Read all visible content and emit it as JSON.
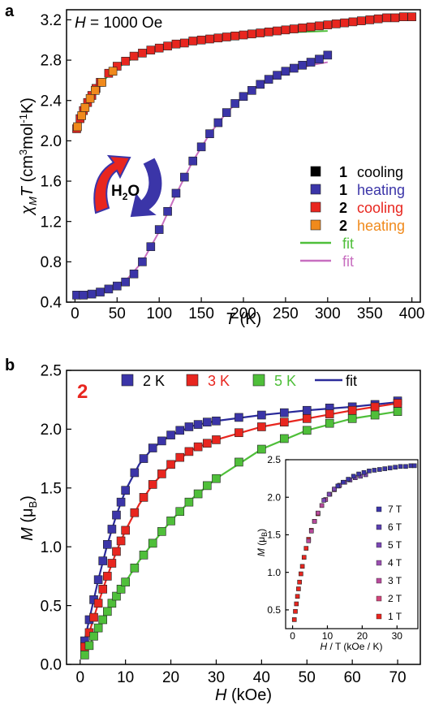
{
  "chart_data": [
    {
      "panel": "a",
      "type": "scatter",
      "annotation": "H = 1000 Oe",
      "xlabel": "T (K)",
      "ylabel": "χMT (cm3mol-1K)",
      "xlim": [
        -10,
        410
      ],
      "ylim": [
        0.4,
        3.3
      ],
      "xticks": [
        0,
        50,
        100,
        150,
        200,
        250,
        300,
        350,
        400
      ],
      "yticks": [
        0.4,
        0.8,
        1.2,
        1.6,
        2.0,
        2.4,
        2.8,
        3.2
      ],
      "ytick_labels": [
        "0.4",
        "0.8",
        "1.2",
        "1.6",
        "2.0",
        "2.4",
        "2.8",
        "3.2"
      ],
      "inset_label": "H2O",
      "legend": [
        {
          "id": "1",
          "label": "cooling",
          "marker": "square",
          "color": "#000000",
          "text_color": "#000000"
        },
        {
          "id": "1",
          "label": "heating",
          "marker": "square",
          "color": "#3b35a8",
          "text_color": "#3b35a8"
        },
        {
          "id": "2",
          "label": "cooling",
          "marker": "square",
          "color": "#e8261f",
          "text_color": "#e8261f"
        },
        {
          "id": "2",
          "label": "heating",
          "marker": "square",
          "color": "#f08a1c",
          "text_color": "#f08a1c"
        },
        {
          "id": "",
          "label": "fit",
          "marker": "line",
          "color": "#4fbf3a",
          "text_color": "#4fbf3a"
        },
        {
          "id": "",
          "label": "fit",
          "marker": "line",
          "color": "#c86fc0",
          "text_color": "#c86fc0"
        }
      ],
      "series": [
        {
          "name": "1 heating",
          "color": "#3b35a8",
          "marker": "square",
          "x": [
            2,
            10,
            20,
            30,
            40,
            50,
            60,
            70,
            80,
            90,
            100,
            110,
            120,
            130,
            140,
            150,
            160,
            170,
            180,
            190,
            200,
            210,
            220,
            230,
            240,
            250,
            260,
            270,
            280,
            290,
            300
          ],
          "y": [
            0.47,
            0.47,
            0.48,
            0.5,
            0.53,
            0.56,
            0.6,
            0.68,
            0.8,
            0.95,
            1.12,
            1.3,
            1.48,
            1.64,
            1.8,
            1.94,
            2.07,
            2.18,
            2.28,
            2.37,
            2.44,
            2.5,
            2.56,
            2.61,
            2.65,
            2.69,
            2.72,
            2.75,
            2.78,
            2.81,
            2.85
          ]
        },
        {
          "name": "2 cooling",
          "color": "#e8261f",
          "marker": "square",
          "x": [
            2,
            6,
            10,
            15,
            20,
            25,
            30,
            40,
            50,
            60,
            70,
            80,
            90,
            100,
            110,
            120,
            130,
            140,
            150,
            160,
            170,
            180,
            190,
            200,
            210,
            220,
            230,
            240,
            250,
            260,
            270,
            280,
            290,
            300,
            310,
            320,
            330,
            340,
            350,
            360,
            370,
            380,
            390,
            400
          ],
          "y": [
            2.12,
            2.22,
            2.3,
            2.38,
            2.45,
            2.52,
            2.58,
            2.67,
            2.74,
            2.79,
            2.84,
            2.87,
            2.9,
            2.92,
            2.94,
            2.96,
            2.97,
            2.99,
            3.0,
            3.01,
            3.02,
            3.03,
            3.04,
            3.05,
            3.06,
            3.07,
            3.08,
            3.09,
            3.1,
            3.11,
            3.12,
            3.13,
            3.14,
            3.15,
            3.16,
            3.17,
            3.18,
            3.19,
            3.2,
            3.21,
            3.22,
            3.22,
            3.23,
            3.23
          ]
        },
        {
          "name": "2 heating",
          "color": "#f08a1c",
          "marker": "square",
          "x": [
            3,
            8,
            12,
            18,
            24,
            32,
            45
          ],
          "y": [
            2.14,
            2.25,
            2.33,
            2.42,
            2.5,
            2.58,
            2.69
          ]
        }
      ],
      "fits": [
        {
          "name": "fit (1)",
          "color": "#c86fc0",
          "x": [
            0,
            20,
            40,
            60,
            80,
            100,
            120,
            140,
            160,
            180,
            200,
            220,
            240,
            260,
            280,
            300
          ],
          "y": [
            0.46,
            0.47,
            0.52,
            0.61,
            0.8,
            1.1,
            1.47,
            1.8,
            2.07,
            2.28,
            2.44,
            2.56,
            2.64,
            2.7,
            2.75,
            2.78
          ]
        },
        {
          "name": "fit (2)",
          "color": "#4fbf3a",
          "x": [
            0,
            10,
            20,
            30,
            40,
            60,
            80,
            100,
            120,
            150,
            180,
            210,
            240,
            270,
            300
          ],
          "y": [
            2.08,
            2.27,
            2.44,
            2.56,
            2.65,
            2.78,
            2.86,
            2.92,
            2.96,
            3.0,
            3.03,
            3.05,
            3.07,
            3.08,
            3.09
          ]
        }
      ]
    },
    {
      "panel": "b",
      "type": "scatter",
      "compound_label": "2",
      "compound_color": "#e8261f",
      "xlabel": "H (kOe)",
      "ylabel": "M (μB)",
      "xlim": [
        -3,
        75
      ],
      "ylim": [
        0.0,
        2.5
      ],
      "xticks": [
        0,
        10,
        20,
        30,
        40,
        50,
        60,
        70
      ],
      "yticks": [
        0.0,
        0.5,
        1.0,
        1.5,
        2.0,
        2.5
      ],
      "ytick_labels": [
        "0.0",
        "0.5",
        "1.0",
        "1.5",
        "2.0",
        "2.5"
      ],
      "legend": [
        {
          "label": "2 K",
          "marker": "square",
          "color": "#3b35a8",
          "text_color": "#000000"
        },
        {
          "label": "3 K",
          "marker": "square",
          "color": "#e8261f",
          "text_color": "#e8261f"
        },
        {
          "label": "5 K",
          "marker": "square",
          "color": "#4fbf3a",
          "text_color": "#4fbf3a"
        },
        {
          "label": "fit",
          "marker": "line",
          "color": "#2a2a9a",
          "text_color": "#000000"
        }
      ],
      "series": [
        {
          "name": "2 K",
          "color": "#3b35a8",
          "x": [
            1,
            2,
            3,
            4,
            5,
            6,
            7,
            8,
            9,
            10,
            12,
            14,
            16,
            18,
            20,
            22,
            24,
            26,
            28,
            30,
            35,
            40,
            45,
            50,
            55,
            60,
            65,
            70
          ],
          "y": [
            0.2,
            0.38,
            0.55,
            0.72,
            0.88,
            1.02,
            1.15,
            1.27,
            1.38,
            1.48,
            1.63,
            1.75,
            1.84,
            1.9,
            1.95,
            1.99,
            2.02,
            2.04,
            2.06,
            2.07,
            2.1,
            2.12,
            2.14,
            2.16,
            2.18,
            2.19,
            2.21,
            2.24
          ]
        },
        {
          "name": "3 K",
          "color": "#e8261f",
          "x": [
            1,
            2,
            3,
            4,
            5,
            6,
            7,
            8,
            9,
            10,
            12,
            14,
            16,
            18,
            20,
            22,
            24,
            26,
            28,
            30,
            35,
            40,
            45,
            50,
            55,
            60,
            65,
            70
          ],
          "y": [
            0.15,
            0.27,
            0.4,
            0.52,
            0.64,
            0.75,
            0.86,
            0.96,
            1.05,
            1.14,
            1.29,
            1.42,
            1.53,
            1.62,
            1.7,
            1.76,
            1.81,
            1.85,
            1.88,
            1.91,
            1.97,
            2.02,
            2.06,
            2.09,
            2.13,
            2.16,
            2.19,
            2.22
          ]
        },
        {
          "name": "5 K",
          "color": "#4fbf3a",
          "x": [
            1,
            2,
            3,
            4,
            5,
            6,
            7,
            8,
            9,
            10,
            12,
            14,
            16,
            18,
            20,
            22,
            24,
            26,
            28,
            30,
            35,
            40,
            45,
            50,
            55,
            60,
            65,
            70
          ],
          "y": [
            0.08,
            0.16,
            0.24,
            0.31,
            0.38,
            0.45,
            0.52,
            0.58,
            0.64,
            0.7,
            0.82,
            0.93,
            1.03,
            1.13,
            1.22,
            1.3,
            1.38,
            1.45,
            1.52,
            1.58,
            1.72,
            1.83,
            1.92,
            1.99,
            2.05,
            2.09,
            2.12,
            2.15
          ]
        }
      ],
      "fits": [
        {
          "name": "fit 2 K",
          "color": "#2a2a9a",
          "x": [
            0.5,
            2,
            4,
            6,
            8,
            10,
            13,
            16,
            20,
            25,
            30,
            40,
            50,
            60,
            70
          ],
          "y": [
            0.12,
            0.38,
            0.72,
            1.02,
            1.27,
            1.48,
            1.7,
            1.84,
            1.95,
            2.03,
            2.07,
            2.12,
            2.16,
            2.19,
            2.23
          ]
        },
        {
          "name": "fit 3 K",
          "color": "#e8261f",
          "x": [
            0.5,
            2,
            4,
            6,
            8,
            10,
            13,
            16,
            20,
            25,
            30,
            40,
            50,
            60,
            70
          ],
          "y": [
            0.1,
            0.27,
            0.52,
            0.75,
            0.96,
            1.14,
            1.36,
            1.53,
            1.7,
            1.83,
            1.91,
            2.02,
            2.09,
            2.16,
            2.22
          ]
        },
        {
          "name": "fit 5 K",
          "color": "#4fbf3a",
          "x": [
            0.5,
            2,
            4,
            6,
            8,
            10,
            13,
            16,
            20,
            25,
            30,
            40,
            50,
            60,
            70
          ],
          "y": [
            0.05,
            0.16,
            0.31,
            0.45,
            0.58,
            0.7,
            0.88,
            1.03,
            1.22,
            1.42,
            1.58,
            1.83,
            1.99,
            2.09,
            2.15
          ]
        }
      ]
    },
    {
      "panel": "b-inset",
      "type": "scatter",
      "xlabel": "H / T (kOe / K)",
      "ylabel": "M (μB)",
      "xlim": [
        -2,
        36
      ],
      "ylim": [
        0.25,
        2.5
      ],
      "xticks": [
        0,
        10,
        20,
        30
      ],
      "yticks": [
        0.5,
        1.0,
        1.5,
        2.0,
        2.5
      ],
      "ytick_labels": [
        "0.5",
        "1.0",
        "1.5",
        "2.0",
        "2.5"
      ],
      "legend": [
        {
          "label": "7 T",
          "color": "#3b35a8"
        },
        {
          "label": "6 T",
          "color": "#5a3fb0"
        },
        {
          "label": "5 T",
          "color": "#7a47b4"
        },
        {
          "label": "4 T",
          "color": "#9a4fb0"
        },
        {
          "label": "3 T",
          "color": "#b84a9c"
        },
        {
          "label": "2 T",
          "color": "#d2457a"
        },
        {
          "label": "1 T",
          "color": "#e8261f"
        }
      ],
      "series": [
        {
          "name": "1 T",
          "color": "#e8261f",
          "x": [
            0.5,
            0.8,
            1.1,
            1.4,
            1.7,
            2.0,
            2.4,
            2.8,
            3.3,
            3.9,
            4.6,
            5.4,
            6.3,
            7.3
          ],
          "y": [
            0.37,
            0.48,
            0.58,
            0.68,
            0.78,
            0.87,
            0.98,
            1.08,
            1.2,
            1.32,
            1.44,
            1.56,
            1.68,
            1.78
          ]
        },
        {
          "name": "3 T",
          "color": "#b84a9c",
          "x": [
            4.6,
            5.4,
            6.3,
            7.3,
            8.4,
            9.5,
            10.7,
            12.0,
            13.3
          ],
          "y": [
            1.42,
            1.55,
            1.68,
            1.79,
            1.89,
            1.97,
            2.04,
            2.1,
            2.15
          ]
        },
        {
          "name": "5 T",
          "color": "#7a47b4",
          "x": [
            9.0,
            10.5,
            12.0,
            13.5,
            15.0,
            16.5,
            18.0,
            19.5,
            21.0
          ],
          "y": [
            1.96,
            2.04,
            2.11,
            2.16,
            2.2,
            2.23,
            2.26,
            2.28,
            2.3
          ]
        },
        {
          "name": "7 T",
          "color": "#3b35a8",
          "x": [
            13.0,
            14.5,
            16.0,
            17.5,
            19.0,
            20.5,
            22.0,
            23.5,
            25.0,
            26.5,
            28.0,
            29.5,
            31.0,
            32.5,
            34.0,
            35.0
          ],
          "y": [
            2.15,
            2.2,
            2.24,
            2.28,
            2.31,
            2.33,
            2.35,
            2.36,
            2.37,
            2.38,
            2.39,
            2.4,
            2.41,
            2.41,
            2.42,
            2.42
          ]
        }
      ]
    }
  ]
}
